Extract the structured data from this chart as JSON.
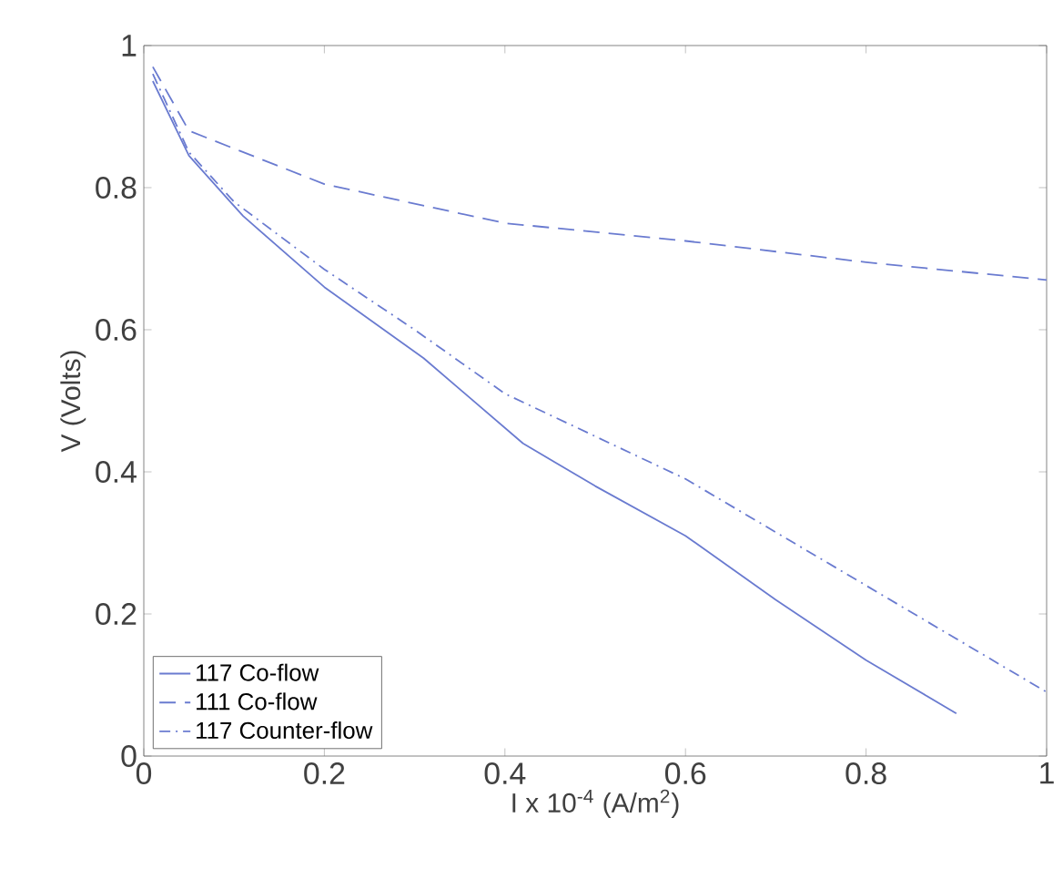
{
  "chart_data": {
    "type": "line",
    "xlabel": "I x 10$^{-4}$ (A/m$^{2}$)",
    "ylabel": "V (Volts)",
    "xlim": [
      0,
      1
    ],
    "ylim": [
      0,
      1
    ],
    "xticks": [
      0,
      0.2,
      0.4,
      0.6,
      0.8,
      1
    ],
    "yticks": [
      0,
      0.2,
      0.4,
      0.6,
      0.8,
      1
    ],
    "legend": "bottom left",
    "grid": false,
    "marker": "none",
    "series": [
      {
        "name": "117 Co-flow",
        "color": "#6a7bd0",
        "line_style": "solid",
        "x": [
          0.01,
          0.05,
          0.11,
          0.2,
          0.31,
          0.42,
          0.5,
          0.6,
          0.7,
          0.8,
          0.9
        ],
        "values": [
          0.95,
          0.845,
          0.76,
          0.66,
          0.56,
          0.44,
          0.38,
          0.31,
          0.22,
          0.135,
          0.06
        ]
      },
      {
        "name": "111 Co-flow",
        "color": "#6a7bd0",
        "line_style": "dashed",
        "x": [
          0.01,
          0.05,
          0.1,
          0.2,
          0.4,
          0.6,
          0.8,
          1.0
        ],
        "values": [
          0.97,
          0.88,
          0.855,
          0.805,
          0.75,
          0.725,
          0.695,
          0.67
        ]
      },
      {
        "name": "117 Counter-flow",
        "color": "#6a7bd0",
        "line_style": "dashdot",
        "x": [
          0.01,
          0.05,
          0.1,
          0.2,
          0.3,
          0.4,
          0.5,
          0.6,
          0.7,
          0.8,
          0.9,
          1.0
        ],
        "values": [
          0.96,
          0.85,
          0.78,
          0.685,
          0.6,
          0.51,
          0.45,
          0.39,
          0.315,
          0.24,
          0.165,
          0.09
        ]
      }
    ]
  }
}
